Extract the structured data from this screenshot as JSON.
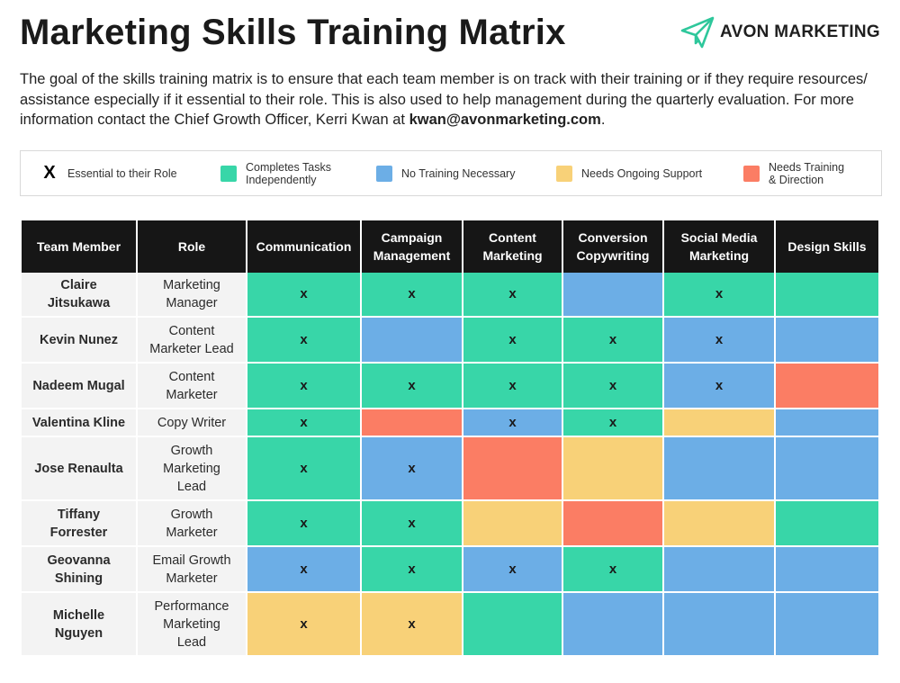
{
  "header": {
    "title": "Marketing Skills Training Matrix",
    "brand": "AVON MARKETING",
    "logo_icon": "paper-plane-icon",
    "intro_text": "The goal of the skills training matrix is to ensure that each team member is on track with their training or if they require resources/ assistance especially if it essential to their role. This is also used to help management during the quarterly evaluation. For more information contact the Chief Growth Officer, Kerri Kwan at ",
    "email": "kwan@avonmarketing.com",
    "intro_end": "."
  },
  "colors": {
    "green": "#38d6a8",
    "blue": "#6caee6",
    "yellow": "#f8d178",
    "red": "#fb7d64",
    "header_bg": "#161616",
    "brand_green": "#2ec79b"
  },
  "legend": {
    "x_symbol": "X",
    "x_label": "Essential to their Role",
    "items": [
      {
        "key": "green",
        "label": "Completes Tasks\nIndependently"
      },
      {
        "key": "blue",
        "label": "No Training Necessary"
      },
      {
        "key": "yellow",
        "label": "Needs Ongoing Support"
      },
      {
        "key": "red",
        "label": "Needs Training\n& Direction"
      }
    ]
  },
  "table": {
    "columns": [
      "Team Member",
      "Role",
      "Communication",
      "Campaign\nManagement",
      "Content\nMarketing",
      "Conversion\nCopywriting",
      "Social Media\nMarketing",
      "Design Skills"
    ],
    "rows": [
      {
        "name": "Claire\nJitsukawa",
        "role": "Marketing\nManager",
        "cells": [
          {
            "c": "green",
            "x": true
          },
          {
            "c": "green",
            "x": true
          },
          {
            "c": "green",
            "x": true
          },
          {
            "c": "blue",
            "x": false
          },
          {
            "c": "green",
            "x": true
          },
          {
            "c": "green",
            "x": false
          }
        ]
      },
      {
        "name": "Kevin Nunez",
        "role": "Content\nMarketer Lead",
        "cells": [
          {
            "c": "green",
            "x": true
          },
          {
            "c": "blue",
            "x": false
          },
          {
            "c": "green",
            "x": true
          },
          {
            "c": "green",
            "x": true
          },
          {
            "c": "blue",
            "x": true
          },
          {
            "c": "blue",
            "x": false
          }
        ]
      },
      {
        "name": "Nadeem Mugal",
        "role": "Content\nMarketer",
        "cells": [
          {
            "c": "green",
            "x": true
          },
          {
            "c": "green",
            "x": true
          },
          {
            "c": "green",
            "x": true
          },
          {
            "c": "green",
            "x": true
          },
          {
            "c": "blue",
            "x": true
          },
          {
            "c": "red",
            "x": false
          }
        ]
      },
      {
        "name": "Valentina Kline",
        "role": "Copy Writer",
        "cells": [
          {
            "c": "green",
            "x": true
          },
          {
            "c": "red",
            "x": false
          },
          {
            "c": "blue",
            "x": true
          },
          {
            "c": "green",
            "x": true
          },
          {
            "c": "yellow",
            "x": false
          },
          {
            "c": "blue",
            "x": false
          }
        ]
      },
      {
        "name": "Jose Renaulta",
        "role": "Growth\nMarketing\nLead",
        "cells": [
          {
            "c": "green",
            "x": true
          },
          {
            "c": "blue",
            "x": true
          },
          {
            "c": "red",
            "x": false
          },
          {
            "c": "yellow",
            "x": false
          },
          {
            "c": "blue",
            "x": false
          },
          {
            "c": "blue",
            "x": false
          }
        ]
      },
      {
        "name": "Tiffany\nForrester",
        "role": "Growth\nMarketer",
        "cells": [
          {
            "c": "green",
            "x": true
          },
          {
            "c": "green",
            "x": true
          },
          {
            "c": "yellow",
            "x": false
          },
          {
            "c": "red",
            "x": false
          },
          {
            "c": "yellow",
            "x": false
          },
          {
            "c": "green",
            "x": false
          }
        ]
      },
      {
        "name": "Geovanna\nShining",
        "role": "Email Growth\nMarketer",
        "cells": [
          {
            "c": "blue",
            "x": true
          },
          {
            "c": "green",
            "x": true
          },
          {
            "c": "blue",
            "x": true
          },
          {
            "c": "green",
            "x": true
          },
          {
            "c": "blue",
            "x": false
          },
          {
            "c": "blue",
            "x": false
          }
        ]
      },
      {
        "name": "Michelle\nNguyen",
        "role": "Performance\nMarketing\nLead",
        "cells": [
          {
            "c": "yellow",
            "x": true
          },
          {
            "c": "yellow",
            "x": true
          },
          {
            "c": "green",
            "x": false
          },
          {
            "c": "blue",
            "x": false
          },
          {
            "c": "blue",
            "x": false
          },
          {
            "c": "blue",
            "x": false
          }
        ]
      }
    ]
  }
}
